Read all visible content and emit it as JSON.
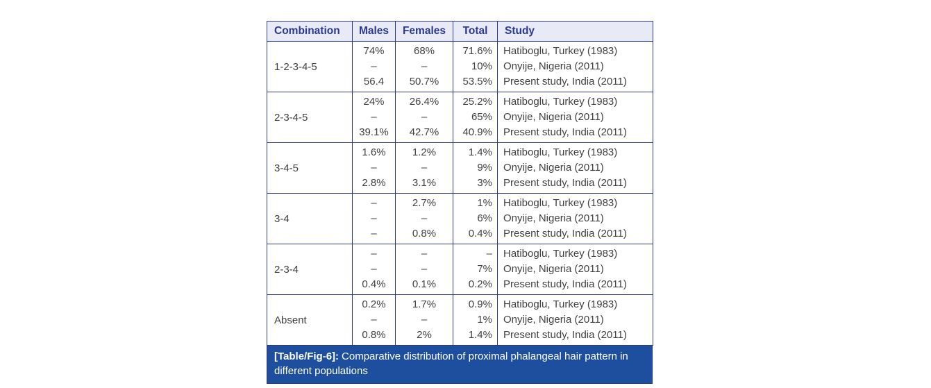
{
  "colors": {
    "page_background": "#ffffff",
    "table_border": "#2b3a8c",
    "header_background": "#e8eaf5",
    "header_text": "#2b3990",
    "body_text": "#414042",
    "caption_background": "#1d4f9e",
    "caption_text": "#ffffff"
  },
  "table": {
    "columns": [
      "Combination",
      "Males",
      "Females",
      "Total",
      "Study"
    ],
    "rows": [
      {
        "combination": "1-2-3-4-5",
        "males": [
          "74%",
          "–",
          "56.4"
        ],
        "females": [
          "68%",
          "–",
          "50.7%"
        ],
        "total": [
          "71.6%",
          "10%",
          "53.5%"
        ],
        "study": [
          "Hatiboglu, Turkey (1983)",
          "Onyije, Nigeria (2011)",
          "Present study, India (2011)"
        ]
      },
      {
        "combination": "2-3-4-5",
        "males": [
          "24%",
          "–",
          "39.1%"
        ],
        "females": [
          "26.4%",
          "–",
          "42.7%"
        ],
        "total": [
          "25.2%",
          "65%",
          "40.9%"
        ],
        "study": [
          "Hatiboglu, Turkey (1983)",
          "Onyije, Nigeria (2011)",
          "Present study, India (2011)"
        ]
      },
      {
        "combination": "3-4-5",
        "males": [
          "1.6%",
          "–",
          "2.8%"
        ],
        "females": [
          "1.2%",
          "–",
          "3.1%"
        ],
        "total": [
          "1.4%",
          "9%",
          "3%"
        ],
        "study": [
          "Hatiboglu, Turkey (1983)",
          "Onyije, Nigeria (2011)",
          "Present study, India (2011)"
        ]
      },
      {
        "combination": "3-4",
        "males": [
          "–",
          "–",
          "–"
        ],
        "females": [
          "2.7%",
          "–",
          "0.8%"
        ],
        "total": [
          "1%",
          "6%",
          "0.4%"
        ],
        "study": [
          "Hatiboglu, Turkey (1983)",
          "Onyije, Nigeria (2011)",
          "Present study, India (2011)"
        ]
      },
      {
        "combination": "2-3-4",
        "males": [
          "–",
          "–",
          "0.4%"
        ],
        "females": [
          "–",
          "–",
          "0.1%"
        ],
        "total": [
          "–",
          "7%",
          "0.2%"
        ],
        "study": [
          "Hatiboglu, Turkey (1983)",
          "Onyije, Nigeria (2011)",
          "Present study, India (2011)"
        ]
      },
      {
        "combination": "Absent",
        "males": [
          "0.2%",
          "–",
          "0.8%"
        ],
        "females": [
          "1.7%",
          "–",
          "2%"
        ],
        "total": [
          "0.9%",
          "1%",
          "1.4%"
        ],
        "study": [
          "Hatiboglu, Turkey (1983)",
          "Onyije, Nigeria (2011)",
          "Present study, India (2011)"
        ]
      }
    ]
  },
  "caption": {
    "label": "[Table/Fig-6]:",
    "text": "Comparative distribution of proximal phalangeal hair pattern in different populations"
  }
}
